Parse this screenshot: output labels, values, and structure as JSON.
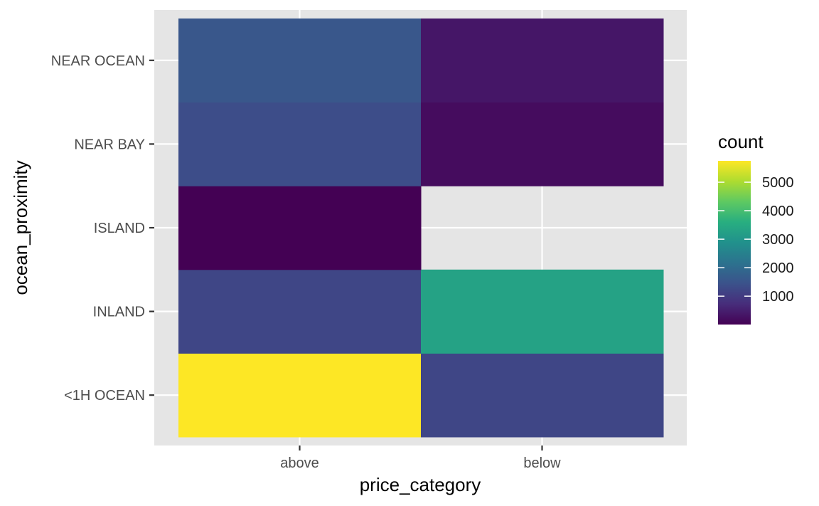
{
  "chart_data": {
    "type": "heatmap",
    "x_categories": [
      "above",
      "below"
    ],
    "y_categories": [
      "<1H OCEAN",
      "INLAND",
      "ISLAND",
      "NEAR BAY",
      "NEAR OCEAN"
    ],
    "cells": [
      {
        "x": "above",
        "y": "<1H OCEAN",
        "value": 5750
      },
      {
        "x": "below",
        "y": "<1H OCEAN",
        "value": 1200
      },
      {
        "x": "above",
        "y": "INLAND",
        "value": 1200
      },
      {
        "x": "below",
        "y": "INLAND",
        "value": 3300
      },
      {
        "x": "above",
        "y": "ISLAND",
        "value": 5
      },
      {
        "x": "above",
        "y": "NEAR BAY",
        "value": 1350
      },
      {
        "x": "below",
        "y": "NEAR BAY",
        "value": 180
      },
      {
        "x": "above",
        "y": "NEAR OCEAN",
        "value": 1550
      },
      {
        "x": "below",
        "y": "NEAR OCEAN",
        "value": 350
      }
    ],
    "xlabel": "price_category",
    "ylabel": "ocean_proximity",
    "legend": {
      "title": "count",
      "ticks": [
        1000,
        2000,
        3000,
        4000,
        5000
      ],
      "tick_labels": [
        "1000",
        "2000",
        "3000",
        "4000",
        "5000"
      ],
      "range": [
        5,
        5750
      ],
      "placement": "right",
      "palette": "viridis"
    },
    "panel_background": "#e5e5e5",
    "grid_color": "#ffffff",
    "grid": true
  }
}
